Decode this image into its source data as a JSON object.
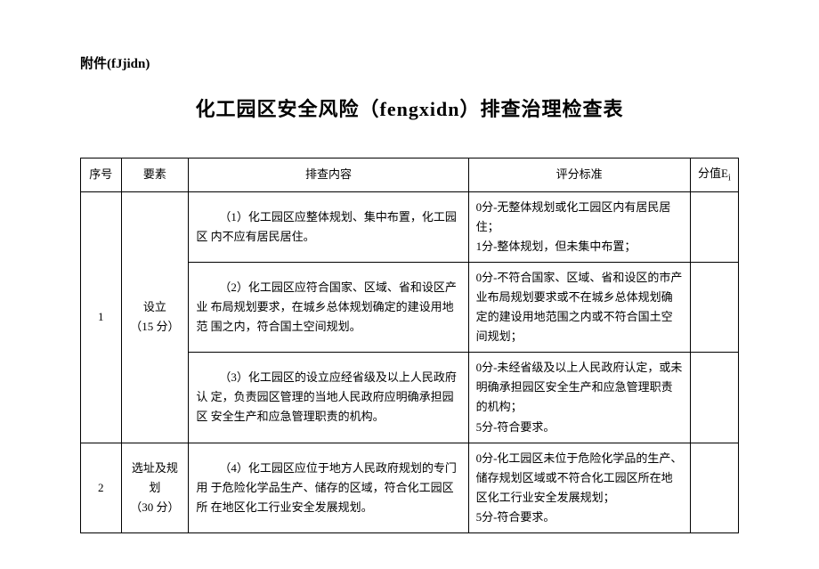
{
  "attachment_label": "附件(fJjidn)",
  "title": "化工园区安全风险（fengxidn）排查治理检查表",
  "headers": {
    "seq": "序号",
    "factor": "要素",
    "content": "排查内容",
    "criteria": "评分标准",
    "score_prefix": "分值E",
    "score_sub": "i"
  },
  "rows": [
    {
      "seq": "1",
      "factor": "设立\n（15 分）",
      "items": [
        {
          "content": "（1）化工园区应整体规划、集中布置，化工园区 内不应有居民居住。",
          "criteria": "0分-无整体规划或化工园区内有居民居住；\n1分-整体规划，但未集中布置；"
        },
        {
          "content": "（2）化工园区应符合国家、区域、省和设区产业 布局规划要求，在城乡总体规划确定的建设用地范 围之内，符合国土空间规划。",
          "criteria": "0分-不符合国家、区域、省和设区的市产业布局规划要求或不在城乡总体规划确定的建设用地范围之内或不符合国土空间规划；"
        },
        {
          "content": "（3）化工园区的设立应经省级及以上人民政府认 定，负责园区管理的当地人民政府应明确承担园区 安全生产和应急管理职责的机构。",
          "criteria": "0分-未经省级及以上人民政府认定，或未明确承担园区安全生产和应急管理职责的机构；\n5分-符合要求。"
        }
      ]
    },
    {
      "seq": "2",
      "factor": "选址及规划\n（30 分）",
      "items": [
        {
          "content": "（4）化工园区应位于地方人民政府规划的专门用 于危险化学品生产、储存的区域，符合化工园区所 在地区化工行业安全发展规划。",
          "criteria": "0分-化工园区未位于危险化学品的生产、储存规划区域或不符合化工园区所在地区化工行业安全发展规划；\n5分-符合要求。"
        }
      ]
    }
  ]
}
